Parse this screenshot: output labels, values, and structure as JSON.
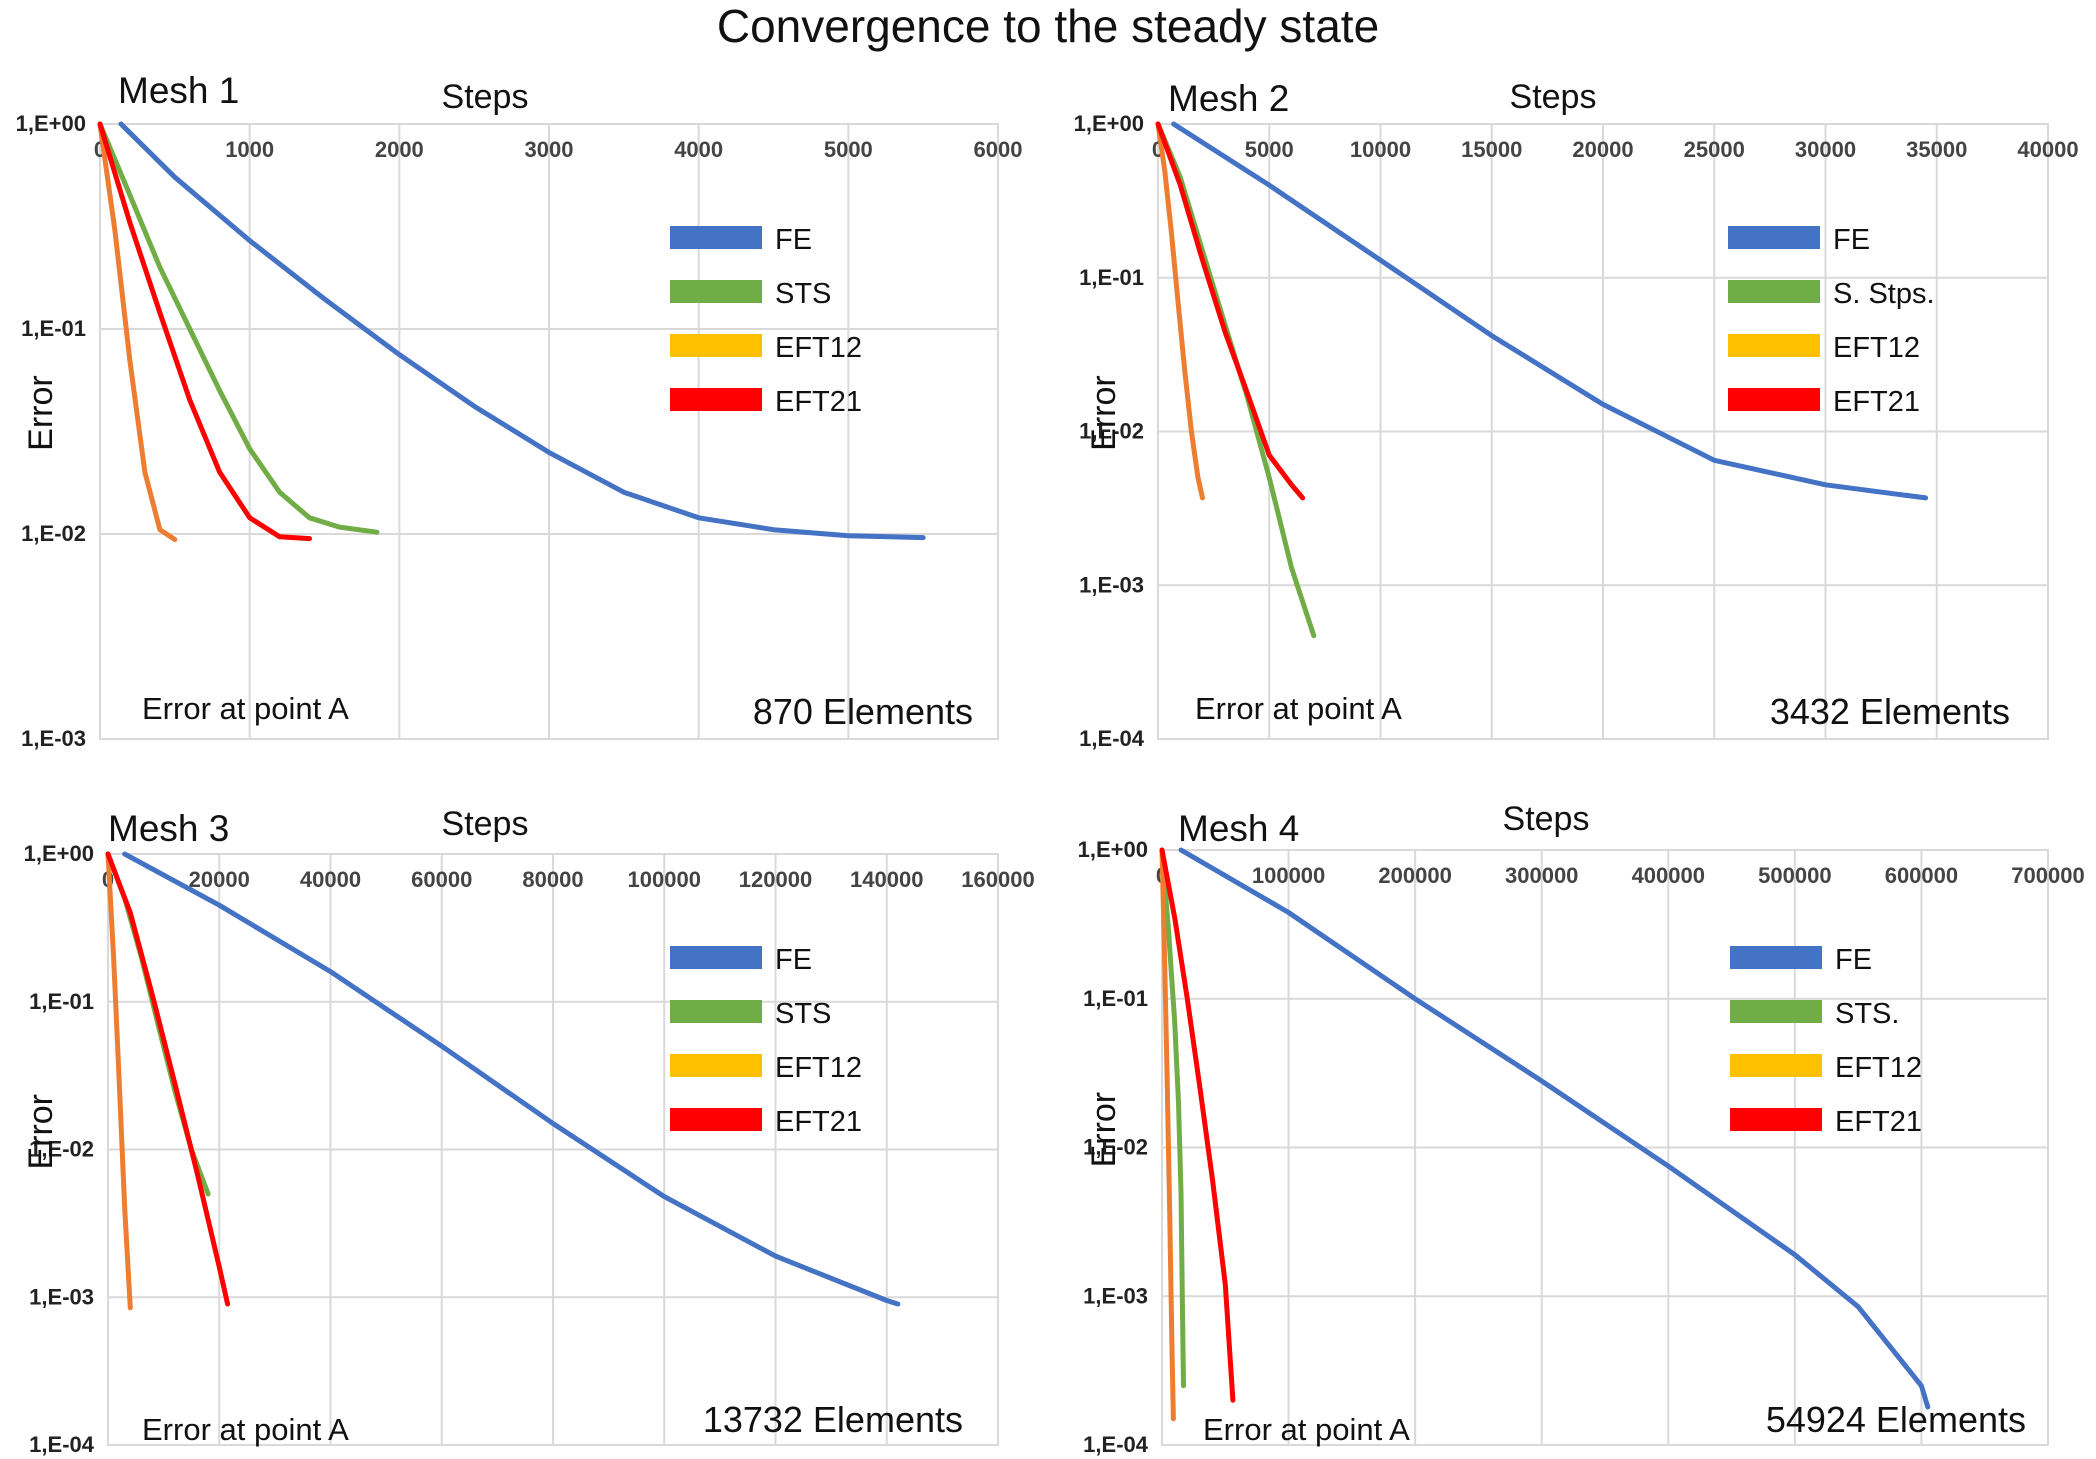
{
  "title": "Convergence to the steady state",
  "colors": {
    "FE": "#4472c4",
    "STS": "#70ad47",
    "EFT12": "#ffc000",
    "EFT12_line": "#ed7d31",
    "EFT21": "#ff0000"
  },
  "chart_data": [
    {
      "type": "line",
      "mesh_label": "Mesh 1",
      "xlabel": "Steps",
      "ylabel": "Error",
      "yscale": "log",
      "xlim": [
        0,
        6000
      ],
      "xticks": [
        "0",
        "1000",
        "2000",
        "3000",
        "4000",
        "5000",
        "6000"
      ],
      "ylim": [
        0.001,
        1
      ],
      "yticks": [
        "1,E+00",
        "1,E-01",
        "1,E-02",
        "1,E-03"
      ],
      "note": "Error at point A",
      "elements": "870 Elements",
      "legend": [
        "FE",
        "STS",
        "EFT12",
        "EFT21"
      ],
      "series": [
        {
          "name": "FE",
          "color_key": "FE",
          "x": [
            140,
            500,
            1000,
            1500,
            2000,
            2500,
            3000,
            3500,
            4000,
            4500,
            5000,
            5500
          ],
          "y": [
            1.0,
            0.55,
            0.27,
            0.14,
            0.075,
            0.042,
            0.025,
            0.016,
            0.012,
            0.0105,
            0.0098,
            0.0096
          ]
        },
        {
          "name": "STS",
          "color_key": "STS",
          "x": [
            0,
            200,
            400,
            600,
            800,
            1000,
            1200,
            1400,
            1600,
            1850
          ],
          "y": [
            1.0,
            0.45,
            0.2,
            0.1,
            0.05,
            0.026,
            0.016,
            0.012,
            0.0108,
            0.0102
          ]
        },
        {
          "name": "EFT12",
          "color_key": "EFT12_line",
          "x": [
            0,
            100,
            200,
            300,
            400,
            500
          ],
          "y": [
            1.0,
            0.3,
            0.07,
            0.02,
            0.0105,
            0.0094
          ]
        },
        {
          "name": "EFT21",
          "color_key": "EFT21",
          "x": [
            0,
            200,
            400,
            600,
            800,
            1000,
            1200,
            1400
          ],
          "y": [
            1.0,
            0.33,
            0.12,
            0.045,
            0.02,
            0.012,
            0.0097,
            0.0095
          ]
        }
      ]
    },
    {
      "type": "line",
      "mesh_label": "Mesh 2",
      "xlabel": "Steps",
      "ylabel": "Error",
      "yscale": "log",
      "xlim": [
        0,
        40000
      ],
      "xticks": [
        "0",
        "5000",
        "10000",
        "15000",
        "20000",
        "25000",
        "30000",
        "35000",
        "40000"
      ],
      "ylim": [
        0.0001,
        1
      ],
      "yticks": [
        "1,E+00",
        "1,E-01",
        "1,E-02",
        "1,E-03",
        "1,E-04"
      ],
      "note": "Error at point A",
      "elements": "3432 Elements",
      "legend": [
        "FE",
        "S. Stps.",
        "EFT12",
        "EFT21"
      ],
      "series": [
        {
          "name": "FE",
          "color_key": "FE",
          "x": [
            700,
            5000,
            10000,
            15000,
            20000,
            25000,
            30000,
            34500
          ],
          "y": [
            1.0,
            0.4,
            0.13,
            0.042,
            0.015,
            0.0065,
            0.0045,
            0.0037
          ]
        },
        {
          "name": "S. Stps.",
          "color_key": "STS",
          "x": [
            0,
            1000,
            2000,
            3000,
            4000,
            5000,
            6000,
            7000
          ],
          "y": [
            1.0,
            0.45,
            0.15,
            0.05,
            0.017,
            0.005,
            0.0013,
            0.00047
          ]
        },
        {
          "name": "EFT12",
          "color_key": "EFT12_line",
          "x": [
            0,
            300,
            600,
            900,
            1200,
            1500,
            1800,
            2000
          ],
          "y": [
            1.0,
            0.5,
            0.2,
            0.07,
            0.025,
            0.01,
            0.005,
            0.0037
          ]
        },
        {
          "name": "EFT21",
          "color_key": "EFT21",
          "x": [
            0,
            1000,
            2000,
            3000,
            4000,
            5000,
            6000,
            6500
          ],
          "y": [
            1.0,
            0.4,
            0.13,
            0.045,
            0.018,
            0.007,
            0.0045,
            0.0037
          ]
        }
      ]
    },
    {
      "type": "line",
      "mesh_label": "Mesh 3",
      "xlabel": "Steps",
      "ylabel": "Error",
      "yscale": "log",
      "xlim": [
        0,
        160000
      ],
      "xticks": [
        "0",
        "20000",
        "40000",
        "60000",
        "80000",
        "100000",
        "120000",
        "140000",
        "160000"
      ],
      "ylim": [
        0.0001,
        1
      ],
      "yticks": [
        "1,E+00",
        "1,E-01",
        "1,E-02",
        "1,E-03",
        "1,E-04"
      ],
      "note": "Error at point A",
      "elements": "13732 Elements",
      "legend": [
        "FE",
        "STS",
        "EFT12",
        "EFT21"
      ],
      "series": [
        {
          "name": "FE",
          "color_key": "FE",
          "x": [
            3000,
            20000,
            40000,
            60000,
            80000,
            100000,
            120000,
            140000,
            142000
          ],
          "y": [
            1.0,
            0.45,
            0.16,
            0.05,
            0.015,
            0.0048,
            0.0019,
            0.00095,
            0.0009
          ]
        },
        {
          "name": "STS",
          "color_key": "STS",
          "x": [
            0,
            3000,
            6000,
            9000,
            12000,
            15000,
            18000
          ],
          "y": [
            1.0,
            0.5,
            0.2,
            0.07,
            0.025,
            0.01,
            0.005
          ]
        },
        {
          "name": "EFT12",
          "color_key": "EFT12_line",
          "x": [
            0,
            1000,
            2000,
            3000,
            4000
          ],
          "y": [
            1.0,
            0.2,
            0.03,
            0.004,
            0.00085
          ]
        },
        {
          "name": "EFT21",
          "color_key": "EFT21",
          "x": [
            0,
            4000,
            8000,
            12000,
            16000,
            20000,
            21500
          ],
          "y": [
            1.0,
            0.4,
            0.11,
            0.028,
            0.007,
            0.0016,
            0.0009
          ]
        }
      ]
    },
    {
      "type": "line",
      "mesh_label": "Mesh 4",
      "xlabel": "Steps",
      "ylabel": "Error",
      "yscale": "log",
      "xlim": [
        0,
        700000
      ],
      "xticks": [
        "0",
        "100000",
        "200000",
        "300000",
        "400000",
        "500000",
        "600000",
        "700000"
      ],
      "ylim": [
        0.0001,
        1
      ],
      "yticks": [
        "1,E+00",
        "1,E-01",
        "1,E-02",
        "1,E-03",
        "1,E-04"
      ],
      "note": "Error at point A",
      "elements": "54924 Elements",
      "legend": [
        "FE",
        "STS.",
        "EFT12",
        "EFT21"
      ],
      "series": [
        {
          "name": "FE",
          "color_key": "FE",
          "x": [
            15000,
            100000,
            200000,
            300000,
            400000,
            500000,
            550000,
            600000,
            605000
          ],
          "y": [
            1.0,
            0.38,
            0.1,
            0.028,
            0.0075,
            0.0019,
            0.00085,
            0.00025,
            0.00018
          ]
        },
        {
          "name": "STS.",
          "color_key": "STS",
          "x": [
            0,
            5000,
            10000,
            13000,
            15000,
            16000,
            17000
          ],
          "y": [
            1.0,
            0.3,
            0.07,
            0.02,
            0.005,
            0.001,
            0.00025
          ]
        },
        {
          "name": "EFT12",
          "color_key": "EFT12_line",
          "x": [
            0,
            2000,
            4000,
            6000,
            8000,
            9000
          ],
          "y": [
            1.0,
            0.2,
            0.03,
            0.004,
            0.0004,
            0.00015
          ]
        },
        {
          "name": "EFT21",
          "color_key": "EFT21",
          "x": [
            0,
            10000,
            20000,
            30000,
            40000,
            50000,
            56000
          ],
          "y": [
            1.0,
            0.35,
            0.1,
            0.025,
            0.006,
            0.0012,
            0.0002
          ]
        }
      ]
    }
  ]
}
